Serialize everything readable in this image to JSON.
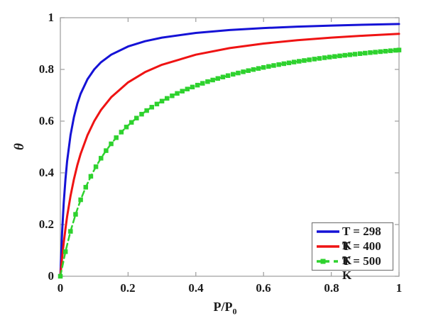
{
  "figure": {
    "background": "#ffffff"
  },
  "axes": {
    "color": "#a3a3a3",
    "tick_len": 6,
    "text_color": "#1b1b1b",
    "legend_border": "#7a7a7a"
  },
  "chart_data": {
    "type": "line",
    "title": "",
    "xlabel_main": "P/P",
    "xlabel_sub": "0",
    "ylabel": "θ",
    "xlim": [
      0,
      1
    ],
    "ylim": [
      0,
      1
    ],
    "x_ticks": [
      0,
      0.2,
      0.4,
      0.6,
      0.8,
      1
    ],
    "y_ticks": [
      0,
      0.2,
      0.4,
      0.6,
      0.8,
      1
    ],
    "x_tick_labels": [
      "0",
      "0.2",
      "0.4",
      "0.6",
      "0.8",
      "1"
    ],
    "y_tick_labels": [
      "0",
      "0.2",
      "0.4",
      "0.6",
      "0.8",
      "1"
    ],
    "grid": false,
    "legend": {
      "position": "lower right"
    },
    "series": [
      {
        "name": "T = 298 K",
        "color": "#1512d6",
        "line": "solid",
        "line_width": 3,
        "marker": "none",
        "x": [
          0,
          0.005,
          0.01,
          0.015,
          0.02,
          0.03,
          0.04,
          0.05,
          0.06,
          0.08,
          0.1,
          0.12,
          0.15,
          0.2,
          0.25,
          0.3,
          0.4,
          0.5,
          0.6,
          0.7,
          0.8,
          0.9,
          1
        ],
        "y": [
          0,
          0.1667,
          0.2857,
          0.375,
          0.4444,
          0.5455,
          0.6154,
          0.6667,
          0.7059,
          0.7619,
          0.8,
          0.8276,
          0.8571,
          0.8889,
          0.9091,
          0.9231,
          0.9412,
          0.9524,
          0.96,
          0.9655,
          0.9697,
          0.973,
          0.9756
        ]
      },
      {
        "name": "T = 400 K",
        "color": "#ef1313",
        "line": "solid",
        "line_width": 3,
        "marker": "none",
        "x": [
          0,
          0.005,
          0.01,
          0.015,
          0.02,
          0.03,
          0.04,
          0.05,
          0.06,
          0.08,
          0.1,
          0.12,
          0.15,
          0.2,
          0.25,
          0.3,
          0.4,
          0.5,
          0.6,
          0.7,
          0.8,
          0.9,
          1
        ],
        "y": [
          0,
          0.0698,
          0.1304,
          0.1837,
          0.2308,
          0.3103,
          0.375,
          0.4286,
          0.4737,
          0.5455,
          0.6,
          0.6429,
          0.6923,
          0.75,
          0.7895,
          0.8182,
          0.8571,
          0.8824,
          0.9,
          0.913,
          0.9231,
          0.931,
          0.9375
        ]
      },
      {
        "name": "T = 500 K",
        "color": "#2ed22e",
        "line": "dashed",
        "line_width": 2.5,
        "marker": "square",
        "marker_size": 6.5,
        "x": [
          0,
          0.015,
          0.03,
          0.045,
          0.06,
          0.075,
          0.09,
          0.105,
          0.12,
          0.135,
          0.15,
          0.165,
          0.18,
          0.195,
          0.21,
          0.225,
          0.24,
          0.255,
          0.27,
          0.285,
          0.3,
          0.315,
          0.33,
          0.345,
          0.36,
          0.375,
          0.39,
          0.405,
          0.42,
          0.435,
          0.45,
          0.465,
          0.48,
          0.495,
          0.51,
          0.525,
          0.54,
          0.555,
          0.57,
          0.585,
          0.6,
          0.615,
          0.63,
          0.645,
          0.66,
          0.675,
          0.69,
          0.705,
          0.72,
          0.735,
          0.75,
          0.765,
          0.78,
          0.795,
          0.81,
          0.825,
          0.84,
          0.855,
          0.87,
          0.885,
          0.9,
          0.915,
          0.93,
          0.945,
          0.96,
          0.975,
          0.99,
          1
        ],
        "y": [
          0,
          0.095,
          0.1736,
          0.2395,
          0.2958,
          0.3443,
          0.3865,
          0.4236,
          0.4565,
          0.4859,
          0.5122,
          0.536,
          0.5575,
          0.5772,
          0.5951,
          0.6117,
          0.6269,
          0.6409,
          0.654,
          0.6661,
          0.6774,
          0.688,
          0.6979,
          0.7072,
          0.7159,
          0.7241,
          0.7319,
          0.7392,
          0.7462,
          0.7528,
          0.759,
          0.765,
          0.7706,
          0.776,
          0.7812,
          0.7861,
          0.7908,
          0.7953,
          0.7996,
          0.8037,
          0.8077,
          0.8115,
          0.8152,
          0.8187,
          0.8221,
          0.8253,
          0.8285,
          0.8315,
          0.8344,
          0.8372,
          0.84,
          0.8426,
          0.8452,
          0.8477,
          0.8501,
          0.8524,
          0.8547,
          0.8568,
          0.859,
          0.861,
          0.863,
          0.865,
          0.8668,
          0.8687,
          0.8705,
          0.8722,
          0.8739,
          0.875
        ]
      }
    ]
  }
}
